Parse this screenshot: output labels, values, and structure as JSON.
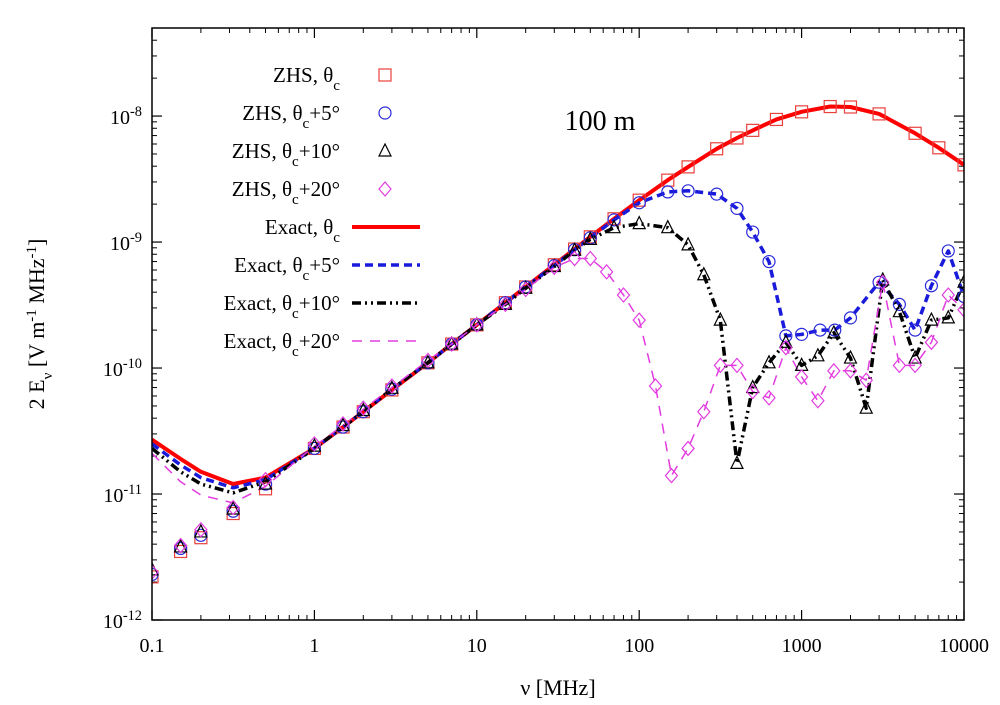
{
  "chart_data": {
    "type": "line",
    "annotation": "100 m",
    "xlabel": "ν [MHz]",
    "ylabel": "2 E_ν [V m^-1 MHz^-1]",
    "xscale": "log",
    "yscale": "log",
    "xlim": [
      0.1,
      10000
    ],
    "ylim": [
      1e-12,
      5e-08
    ],
    "xticks": [
      {
        "value": 0.1,
        "label": "0.1"
      },
      {
        "value": 1,
        "label": "1"
      },
      {
        "value": 10,
        "label": "10"
      },
      {
        "value": 100,
        "label": "100"
      },
      {
        "value": 1000,
        "label": "1000"
      },
      {
        "value": 10000,
        "label": "10000"
      }
    ],
    "yticks": [
      {
        "value": 1e-12,
        "label": "10",
        "exp": "-12"
      },
      {
        "value": 1e-11,
        "label": "10",
        "exp": "-11"
      },
      {
        "value": 1e-10,
        "label": "10",
        "exp": "-10"
      },
      {
        "value": 1e-09,
        "label": "10",
        "exp": "-9"
      },
      {
        "value": 1e-08,
        "label": "10",
        "exp": "-8"
      }
    ],
    "legend_position": "top-left",
    "series": [
      {
        "name": "ZHS, θc",
        "kind": "markers",
        "marker": "square",
        "color": "#e8413c",
        "x": [
          0.1,
          0.15,
          0.2,
          0.316,
          0.5,
          1,
          1.5,
          2,
          3,
          5,
          7,
          10,
          15,
          20,
          30,
          40,
          50,
          70,
          100,
          150,
          200,
          300,
          400,
          500,
          700,
          1000,
          1500,
          2000,
          3000,
          5000,
          7000,
          10000
        ],
        "y": [
          2.2e-12,
          3.5e-12,
          4.5e-12,
          7e-12,
          1.1e-11,
          2.3e-11,
          3.4e-11,
          4.5e-11,
          6.7e-11,
          1.1e-10,
          1.55e-10,
          2.2e-10,
          3.3e-10,
          4.4e-10,
          6.6e-10,
          8.8e-10,
          1.1e-09,
          1.53e-09,
          2.15e-09,
          3.1e-09,
          3.95e-09,
          5.5e-09,
          6.7e-09,
          7.7e-09,
          9.4e-09,
          1.08e-08,
          1.19e-08,
          1.18e-08,
          1.04e-08,
          7.3e-09,
          5.6e-09,
          4.1e-09
        ]
      },
      {
        "name": "ZHS, θc+5°",
        "kind": "markers",
        "marker": "circle",
        "color": "#2a2adb",
        "x": [
          0.1,
          0.15,
          0.2,
          0.316,
          0.5,
          1,
          1.5,
          2,
          3,
          5,
          7,
          10,
          15,
          20,
          30,
          40,
          50,
          70,
          100,
          150,
          200,
          300,
          400,
          500,
          630,
          800,
          1000,
          1300,
          1600,
          2000,
          3000,
          4000,
          5000,
          6300,
          8000,
          10000
        ],
        "y": [
          2.3e-12,
          3.7e-12,
          4.7e-12,
          7.3e-12,
          1.2e-11,
          2.3e-11,
          3.4e-11,
          4.5e-11,
          6.8e-11,
          1.1e-10,
          1.55e-10,
          2.2e-10,
          3.3e-10,
          4.4e-10,
          6.5e-10,
          8.7e-10,
          1.08e-09,
          1.5e-09,
          2.05e-09,
          2.5e-09,
          2.55e-09,
          2.4e-09,
          1.85e-09,
          1.2e-09,
          7e-10,
          1.8e-10,
          1.85e-10,
          2e-10,
          2e-10,
          2.5e-10,
          4.8e-10,
          3.2e-10,
          2e-10,
          4.5e-10,
          8.5e-10,
          3.7e-10
        ]
      },
      {
        "name": "ZHS, θc+10°",
        "kind": "markers",
        "marker": "triangle",
        "color": "#000000",
        "x": [
          0.1,
          0.15,
          0.2,
          0.316,
          0.5,
          1,
          1.5,
          2,
          3,
          5,
          7,
          10,
          15,
          20,
          30,
          40,
          50,
          70,
          100,
          150,
          200,
          250,
          316,
          400,
          500,
          630,
          800,
          1000,
          1260,
          1580,
          2000,
          2500,
          3160,
          4000,
          5000,
          6300,
          8000,
          10000
        ],
        "y": [
          2.5e-12,
          3.8e-12,
          5e-12,
          7.6e-12,
          1.2e-11,
          2.4e-11,
          3.5e-11,
          4.6e-11,
          6.9e-11,
          1.1e-10,
          1.55e-10,
          2.2e-10,
          3.2e-10,
          4.3e-10,
          6.4e-10,
          8.6e-10,
          1.05e-09,
          1.3e-09,
          1.4e-09,
          1.3e-09,
          9.5e-10,
          5.5e-10,
          2.4e-10,
          1.75e-11,
          7e-11,
          1.1e-10,
          1.6e-10,
          1.05e-10,
          1.25e-10,
          1.9e-10,
          1.2e-10,
          4.8e-11,
          5e-10,
          2.8e-10,
          1.2e-10,
          2.4e-10,
          2.5e-10,
          4.8e-10
        ]
      },
      {
        "name": "ZHS, θc+20°",
        "kind": "markers",
        "marker": "diamond",
        "color": "#e23be0",
        "x": [
          0.1,
          0.15,
          0.2,
          0.316,
          0.5,
          1,
          1.5,
          2,
          3,
          5,
          7,
          10,
          15,
          20,
          30,
          40,
          50,
          63,
          80,
          100,
          126,
          158,
          200,
          250,
          316,
          400,
          500,
          630,
          800,
          1000,
          1260,
          1580,
          2000,
          2500,
          3160,
          4000,
          5000,
          6300,
          8000,
          10000
        ],
        "y": [
          2.4e-12,
          3.9e-12,
          5.2e-12,
          7.8e-12,
          1.3e-11,
          2.5e-11,
          3.6e-11,
          4.8e-11,
          7.2e-11,
          1.15e-10,
          1.55e-10,
          2.2e-10,
          3.2e-10,
          4.2e-10,
          6.3e-10,
          7.4e-10,
          7.4e-10,
          5.8e-10,
          3.8e-10,
          2.4e-10,
          7.2e-11,
          1.4e-11,
          2.3e-11,
          4.5e-11,
          1.05e-10,
          1.05e-10,
          6.5e-11,
          5.8e-11,
          1.45e-10,
          8.5e-11,
          5.5e-11,
          9.5e-11,
          9.5e-11,
          8e-11,
          4.8e-10,
          1.05e-10,
          1.05e-10,
          1.6e-10,
          3.8e-10,
          2.9e-10
        ]
      },
      {
        "name": "Exact, θc",
        "kind": "line",
        "dash": "solid",
        "color": "#ff0000",
        "width": 4,
        "x": [
          0.1,
          0.15,
          0.2,
          0.316,
          0.5,
          1,
          1.5,
          2,
          3,
          5,
          7,
          10,
          15,
          20,
          30,
          40,
          50,
          70,
          100,
          150,
          200,
          300,
          400,
          500,
          700,
          1000,
          1500,
          2000,
          3000,
          5000,
          7000,
          10000
        ],
        "y": [
          2.7e-11,
          1.9e-11,
          1.5e-11,
          1.2e-11,
          1.35e-11,
          2.3e-11,
          3.4e-11,
          4.5e-11,
          6.7e-11,
          1.1e-10,
          1.55e-10,
          2.2e-10,
          3.3e-10,
          4.4e-10,
          6.6e-10,
          8.8e-10,
          1.1e-09,
          1.53e-09,
          2.15e-09,
          3.1e-09,
          3.95e-09,
          5.5e-09,
          6.7e-09,
          7.7e-09,
          9.4e-09,
          1.08e-08,
          1.19e-08,
          1.18e-08,
          1.04e-08,
          7.3e-09,
          5.6e-09,
          4.1e-09
        ]
      },
      {
        "name": "Exact, θc+5°",
        "kind": "line",
        "dash": "dash",
        "color": "#1a1adb",
        "width": 3.5,
        "x": [
          0.1,
          0.15,
          0.2,
          0.316,
          0.5,
          1,
          1.5,
          2,
          3,
          5,
          7,
          10,
          15,
          20,
          30,
          40,
          50,
          70,
          100,
          150,
          200,
          300,
          400,
          500,
          630,
          800,
          1000,
          1300,
          1600,
          2000,
          3000,
          4000,
          5000,
          6300,
          8000,
          10000
        ],
        "y": [
          2.5e-11,
          1.7e-11,
          1.35e-11,
          1.12e-11,
          1.3e-11,
          2.3e-11,
          3.4e-11,
          4.5e-11,
          6.8e-11,
          1.1e-10,
          1.55e-10,
          2.2e-10,
          3.3e-10,
          4.4e-10,
          6.5e-10,
          8.7e-10,
          1.08e-09,
          1.5e-09,
          2.05e-09,
          2.5e-09,
          2.55e-09,
          2.4e-09,
          1.85e-09,
          1.2e-09,
          7e-10,
          1.8e-10,
          1.85e-10,
          2e-10,
          2e-10,
          2.5e-10,
          4.8e-10,
          3.2e-10,
          2e-10,
          4.5e-10,
          8.5e-10,
          3.7e-10
        ]
      },
      {
        "name": "Exact, θc+10°",
        "kind": "line",
        "dash": "dashdot",
        "color": "#000000",
        "width": 3.5,
        "x": [
          0.1,
          0.15,
          0.2,
          0.316,
          0.5,
          1,
          1.5,
          2,
          3,
          5,
          7,
          10,
          15,
          20,
          30,
          40,
          50,
          70,
          100,
          150,
          200,
          250,
          316,
          400,
          500,
          630,
          800,
          1000,
          1260,
          1580,
          2000,
          2500,
          3160,
          4000,
          5000,
          6300,
          8000,
          10000
        ],
        "y": [
          2.3e-11,
          1.5e-11,
          1.2e-11,
          1.02e-11,
          1.25e-11,
          2.3e-11,
          3.4e-11,
          4.5e-11,
          6.8e-11,
          1.1e-10,
          1.55e-10,
          2.2e-10,
          3.2e-10,
          4.3e-10,
          6.4e-10,
          8.6e-10,
          1.05e-09,
          1.3e-09,
          1.4e-09,
          1.3e-09,
          9.5e-10,
          5.5e-10,
          2.4e-10,
          1.75e-11,
          7e-11,
          1.1e-10,
          1.6e-10,
          1.05e-10,
          1.25e-10,
          1.9e-10,
          1.2e-10,
          4.8e-11,
          5e-10,
          2.8e-10,
          1.2e-10,
          2.4e-10,
          2.5e-10,
          4.8e-10
        ]
      },
      {
        "name": "Exact, θc+20°",
        "kind": "line",
        "dash": "longdash",
        "color": "#e23be0",
        "width": 1.5,
        "x": [
          0.1,
          0.15,
          0.2,
          0.316,
          0.5,
          1,
          1.5,
          2,
          3,
          5,
          7,
          10,
          15,
          20,
          30,
          40,
          50,
          63,
          80,
          100,
          126,
          158,
          200,
          250,
          316,
          400,
          500,
          630,
          800,
          1000,
          1260,
          1580,
          2000,
          2500,
          3160,
          4000,
          5000,
          6300,
          8000,
          10000
        ],
        "y": [
          2.1e-11,
          1.25e-11,
          9.8e-12,
          8.5e-12,
          1.15e-11,
          2.4e-11,
          3.5e-11,
          4.7e-11,
          7e-11,
          1.15e-10,
          1.55e-10,
          2.2e-10,
          3.2e-10,
          4.2e-10,
          6.3e-10,
          7.4e-10,
          7.4e-10,
          5.8e-10,
          3.8e-10,
          2.4e-10,
          7.2e-11,
          1.4e-11,
          2.3e-11,
          4.5e-11,
          1.05e-10,
          1.05e-10,
          6.5e-11,
          5.8e-11,
          1.45e-10,
          8.5e-11,
          5.5e-11,
          9.5e-11,
          9.5e-11,
          8e-11,
          4.8e-10,
          1.05e-10,
          1.05e-10,
          1.6e-10,
          3.8e-10,
          2.9e-10
        ]
      }
    ]
  }
}
